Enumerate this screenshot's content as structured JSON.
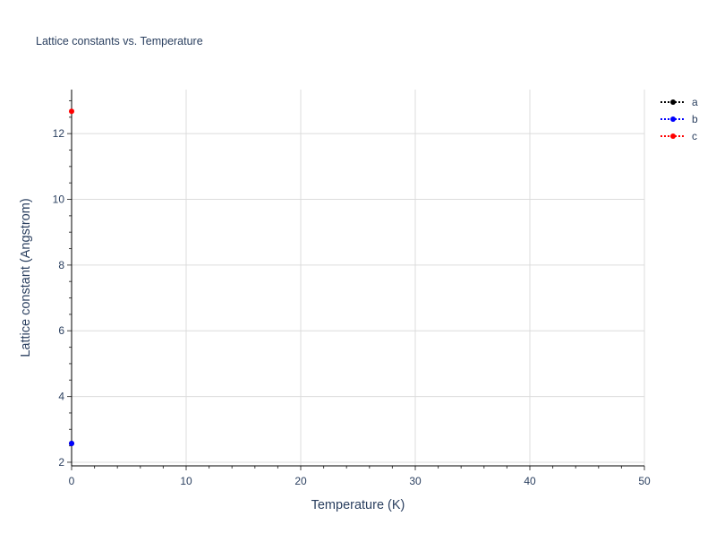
{
  "chart_data": {
    "type": "line",
    "title": "Lattice constants vs. Temperature",
    "xlabel": "Temperature (K)",
    "ylabel": "Lattice constant (Angstrom)",
    "xlim": [
      0,
      50
    ],
    "ylim": [
      1.89,
      13.34
    ],
    "xticks": [
      0,
      10,
      20,
      30,
      40,
      50
    ],
    "yticks": [
      2,
      4,
      6,
      8,
      10,
      12
    ],
    "grid": true,
    "legend_position": "top-right",
    "series": [
      {
        "name": "a",
        "color": "#000000",
        "x": [
          0
        ],
        "y": [
          2.57
        ]
      },
      {
        "name": "b",
        "color": "#0000ff",
        "x": [
          0
        ],
        "y": [
          2.57
        ]
      },
      {
        "name": "c",
        "color": "#ff0000",
        "x": [
          0
        ],
        "y": [
          12.68
        ]
      }
    ]
  }
}
